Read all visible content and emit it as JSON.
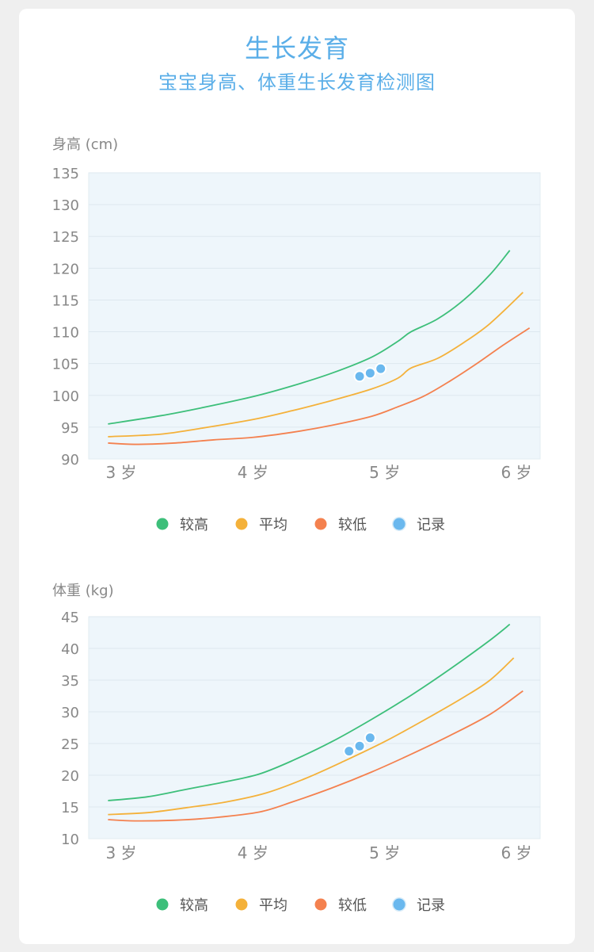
{
  "header": {
    "title": "生长发育",
    "subtitle": "宝宝身高、体重生长发育检测图"
  },
  "colors": {
    "high": "#3dbf7a",
    "average": "#f4b13a",
    "low": "#f4814f",
    "record": "#6ab8ee",
    "plot_bg": "#eef6fb",
    "grid": "#dde8ef"
  },
  "chart_data": [
    {
      "type": "line",
      "ylabel": "身高 (cm)",
      "ylim": [
        90,
        135
      ],
      "yticks": [
        90,
        95,
        100,
        105,
        110,
        115,
        120,
        125,
        130,
        135
      ],
      "xticks": [
        3,
        4,
        5,
        6
      ],
      "xtick_labels": [
        "3 岁",
        "4 岁",
        "5 岁",
        "6 岁"
      ],
      "grid": true,
      "legend_position": "bottom",
      "series": [
        {
          "name": "较高",
          "key": "high",
          "x": [
            2.9,
            3.3,
            3.6,
            4.0,
            4.3,
            4.6,
            4.9,
            5.1,
            5.2,
            5.4,
            5.6,
            5.8,
            5.95
          ],
          "y": [
            95.5,
            96.8,
            98.0,
            99.8,
            101.5,
            103.5,
            106.0,
            108.5,
            110.0,
            112.0,
            115.0,
            119.0,
            122.8
          ]
        },
        {
          "name": "平均",
          "key": "average",
          "x": [
            2.9,
            3.3,
            3.6,
            4.0,
            4.3,
            4.6,
            4.9,
            5.1,
            5.2,
            5.4,
            5.6,
            5.8,
            6.05
          ],
          "y": [
            93.5,
            93.9,
            94.8,
            96.2,
            97.6,
            99.2,
            101.0,
            102.7,
            104.3,
            105.8,
            108.3,
            111.3,
            116.2
          ]
        },
        {
          "name": "较低",
          "key": "low",
          "x": [
            2.9,
            3.1,
            3.4,
            3.7,
            4.0,
            4.3,
            4.6,
            4.9,
            5.1,
            5.3,
            5.5,
            5.7,
            5.9,
            6.1
          ],
          "y": [
            92.5,
            92.3,
            92.5,
            93.0,
            93.4,
            94.2,
            95.3,
            96.7,
            98.2,
            99.9,
            102.3,
            105.0,
            107.9,
            110.6
          ]
        },
        {
          "name": "记录",
          "key": "record",
          "type": "scatter",
          "x": [
            4.81,
            4.89,
            4.97
          ],
          "y": [
            103.0,
            103.5,
            104.2
          ]
        }
      ]
    },
    {
      "type": "line",
      "ylabel": "体重 (kg)",
      "ylim": [
        10,
        45
      ],
      "yticks": [
        10,
        15,
        20,
        25,
        30,
        35,
        40,
        45
      ],
      "xticks": [
        3,
        4,
        5,
        6
      ],
      "xtick_labels": [
        "3 岁",
        "4 岁",
        "5 岁",
        "6 岁"
      ],
      "grid": true,
      "legend_position": "bottom",
      "series": [
        {
          "name": "较高",
          "key": "high",
          "x": [
            2.9,
            3.2,
            3.5,
            3.8,
            4.05,
            4.3,
            4.6,
            4.9,
            5.2,
            5.5,
            5.8,
            5.95
          ],
          "y": [
            16.0,
            16.6,
            17.8,
            19.0,
            20.2,
            22.3,
            25.3,
            28.8,
            32.6,
            36.8,
            41.3,
            43.8
          ]
        },
        {
          "name": "平均",
          "key": "average",
          "x": [
            2.9,
            3.2,
            3.5,
            3.8,
            4.1,
            4.4,
            4.7,
            5.0,
            5.3,
            5.6,
            5.8,
            5.98
          ],
          "y": [
            13.8,
            14.1,
            14.9,
            15.8,
            17.2,
            19.5,
            22.3,
            25.3,
            28.7,
            32.3,
            35.0,
            38.5
          ]
        },
        {
          "name": "较低",
          "key": "low",
          "x": [
            2.9,
            3.1,
            3.4,
            3.7,
            4.05,
            4.3,
            4.6,
            4.9,
            5.2,
            5.5,
            5.8,
            6.05
          ],
          "y": [
            13.0,
            12.8,
            12.9,
            13.3,
            14.2,
            15.8,
            18.0,
            20.5,
            23.3,
            26.3,
            29.6,
            33.3
          ]
        },
        {
          "name": "记录",
          "key": "record",
          "type": "scatter",
          "x": [
            4.73,
            4.81,
            4.89
          ],
          "y": [
            23.8,
            24.6,
            25.9
          ]
        }
      ]
    }
  ]
}
